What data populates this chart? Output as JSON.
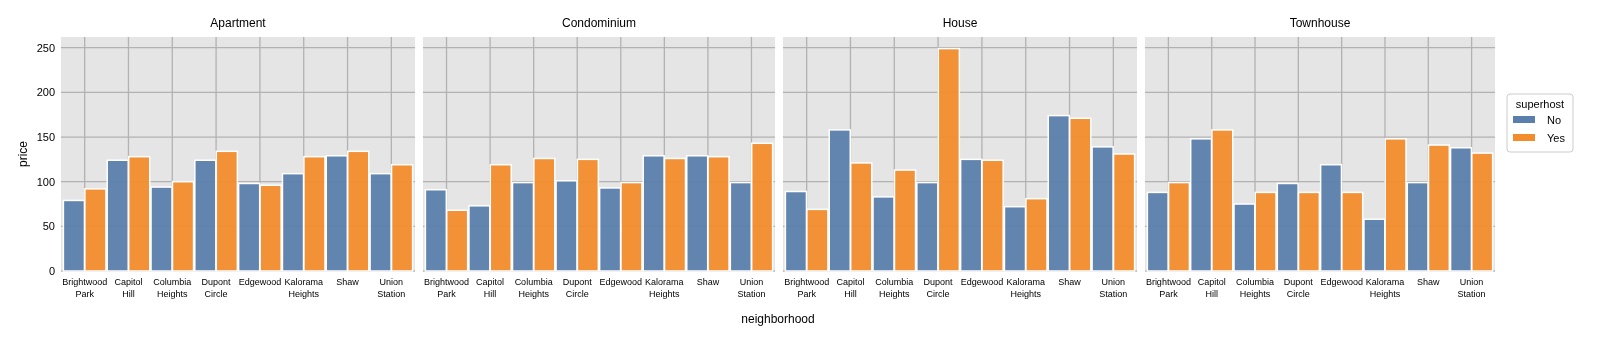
{
  "chart_data": [
    {
      "type": "bar",
      "title": "Apartment",
      "ylabel": "price",
      "categories": [
        "Brightwood\nPark",
        "Capitol\nHill",
        "Columbia\nHeights",
        "Dupont\nCircle",
        "Edgewood",
        "Kalorama\nHeights",
        "Shaw",
        "Union\nStation"
      ],
      "ylim": [
        0,
        262
      ],
      "yticks": [
        0,
        50,
        100,
        150,
        200,
        250
      ],
      "grid": true,
      "series": [
        {
          "color": "#5b7fad",
          "values": [
            79,
            124,
            94,
            124,
            98,
            109,
            129,
            109
          ]
        },
        {
          "color": "#f28c2c",
          "values": [
            92,
            128,
            100,
            134,
            96,
            128,
            134,
            119
          ]
        }
      ]
    },
    {
      "type": "bar",
      "title": "Condominium",
      "xlabel": "neighborhood",
      "categories": [
        "Brightwood\nPark",
        "Capitol\nHill",
        "Columbia\nHeights",
        "Dupont\nCircle",
        "Edgewood",
        "Kalorama\nHeights",
        "Shaw",
        "Union\nStation"
      ],
      "ylim": [
        0,
        262
      ],
      "yticks": [
        0,
        50,
        100,
        150,
        200,
        250
      ],
      "grid": true,
      "tick_labels": "x",
      "series": [
        {
          "color": "#5b7fad",
          "values": [
            91,
            73,
            99,
            101,
            93,
            129,
            129,
            99
          ]
        },
        {
          "color": "#f28c2c",
          "values": [
            68,
            119,
            126,
            125,
            99,
            126,
            128,
            143
          ]
        }
      ]
    },
    {
      "type": "bar",
      "title": "House",
      "categories": [
        "Brightwood\nPark",
        "Capitol\nHill",
        "Columbia\nHeights",
        "Dupont\nCircle",
        "Edgewood",
        "Kalorama\nHeights",
        "Shaw",
        "Union\nStation"
      ],
      "ylim": [
        0,
        262
      ],
      "yticks": [
        0,
        50,
        100,
        150,
        200,
        250
      ],
      "grid": true,
      "tick_labels": "x",
      "series": [
        {
          "color": "#5b7fad",
          "values": [
            89,
            158,
            83,
            99,
            125,
            72,
            174,
            139
          ]
        },
        {
          "color": "#f28c2c",
          "values": [
            69,
            121,
            113,
            249,
            124,
            81,
            171,
            131
          ]
        }
      ]
    },
    {
      "type": "bar",
      "title": "Townhouse",
      "legend_title": "superhost",
      "legend": "right",
      "categories": [
        "Brightwood\nPark",
        "Capitol\nHill",
        "Columbia\nHeights",
        "Dupont\nCircle",
        "Edgewood",
        "Kalorama\nHeights",
        "Shaw",
        "Union\nStation"
      ],
      "ylim": [
        0,
        262
      ],
      "yticks": [
        0,
        50,
        100,
        150,
        200,
        250
      ],
      "grid": true,
      "tick_labels": "x",
      "series": [
        {
          "name": "No",
          "color": "#5b7fad",
          "values": [
            88,
            148,
            75,
            98,
            119,
            58,
            99,
            138
          ]
        },
        {
          "name": "Yes",
          "color": "#f28c2c",
          "values": [
            99,
            158,
            88,
            88,
            88,
            148,
            141,
            132
          ]
        }
      ]
    }
  ]
}
